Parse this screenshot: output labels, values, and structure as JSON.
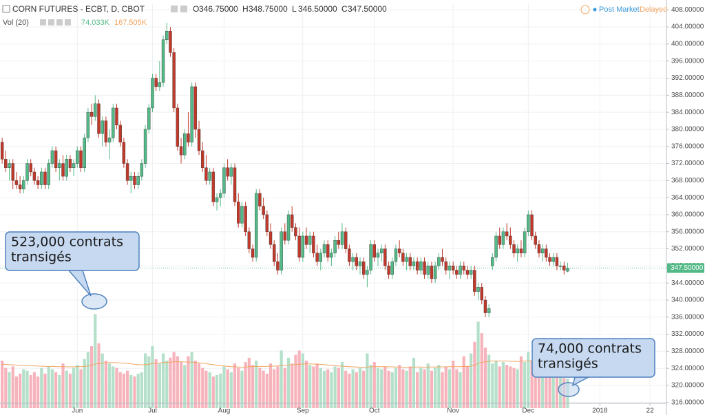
{
  "chart_data": {
    "type": "candlestick",
    "title": "CORN FUTURES - ECBT, D, CBOT",
    "ohlc": [
      {
        "label": "O",
        "value": "346.75000"
      },
      {
        "label": "H",
        "value": "348.75000"
      },
      {
        "label": "L",
        "value": "346.50000"
      },
      {
        "label": "C",
        "value": "347.50000"
      }
    ],
    "volume_title": "Vol (20)",
    "volume_label": "74.033K",
    "volume_ma_label": "167.505K",
    "status": [
      "Post Market",
      "Delayed"
    ],
    "last_price": {
      "value": 347.5,
      "label": "347.50000"
    },
    "annotations": [
      {
        "lines": [
          "523,000 contrats",
          "transigés"
        ]
      },
      {
        "lines": [
          "74,000 contrats",
          "transigés"
        ]
      }
    ],
    "up_color": "#53b987",
    "down_color": "#c0392b",
    "volume_up_color": "#b4e0ca",
    "volume_down_color": "#f7b3bb",
    "volume_ma_color": "#f0a35e",
    "grid": true,
    "xlim": [
      -0.6,
      185.6
    ],
    "xticks": [
      {
        "value": 21,
        "label": "Jun"
      },
      {
        "value": 42,
        "label": "Jul"
      },
      {
        "value": 62,
        "label": "Aug"
      },
      {
        "value": 84,
        "label": "Sep"
      },
      {
        "value": 104,
        "label": "Oct"
      },
      {
        "value": 126,
        "label": "Nov"
      },
      {
        "value": 147,
        "label": "Dec"
      },
      {
        "value": 167,
        "label": "2018"
      },
      {
        "value": 181,
        "label": "22"
      }
    ],
    "ylim": [
      315,
      409.5
    ],
    "yticks": [
      {
        "value": 316,
        "label": "316.00000"
      },
      {
        "value": 320,
        "label": "320.00000"
      },
      {
        "value": 324,
        "label": "324.00000"
      },
      {
        "value": 328,
        "label": "328.00000"
      },
      {
        "value": 332,
        "label": "332.00000"
      },
      {
        "value": 336,
        "label": "336.00000"
      },
      {
        "value": 340,
        "label": "340.00000"
      },
      {
        "value": 344,
        "label": "344.00000"
      },
      {
        "value": 348,
        "label": "348.00000"
      },
      {
        "value": 352,
        "label": "352.00000"
      },
      {
        "value": 356,
        "label": "356.00000"
      },
      {
        "value": 360,
        "label": "360.00000"
      },
      {
        "value": 364,
        "label": "364.00000"
      },
      {
        "value": 368,
        "label": "368.00000"
      },
      {
        "value": 372,
        "label": "372.00000"
      },
      {
        "value": 376,
        "label": "376.00000"
      },
      {
        "value": 380,
        "label": "380.00000"
      },
      {
        "value": 384,
        "label": "384.00000"
      },
      {
        "value": 388,
        "label": "388.00000"
      },
      {
        "value": 392,
        "label": "392.00000"
      },
      {
        "value": 396,
        "label": "396.00000"
      },
      {
        "value": 400,
        "label": "400.00000"
      },
      {
        "value": 404,
        "label": "404.00000"
      },
      {
        "value": 408,
        "label": "408.00000"
      }
    ],
    "candles": [
      [
        377,
        378,
        372,
        373
      ],
      [
        373,
        375,
        370,
        371
      ],
      [
        371,
        373,
        368,
        372
      ],
      [
        372,
        373,
        366,
        368
      ],
      [
        368,
        370,
        366,
        367
      ],
      [
        367,
        369,
        365,
        366
      ],
      [
        366,
        369,
        365,
        368
      ],
      [
        368,
        373,
        367,
        372
      ],
      [
        372,
        373,
        369,
        370
      ],
      [
        370,
        371,
        367,
        368
      ],
      [
        368,
        369,
        366,
        367
      ],
      [
        367,
        371,
        366,
        370
      ],
      [
        370,
        371,
        366,
        367
      ],
      [
        367,
        373,
        366,
        372
      ],
      [
        372,
        376,
        371,
        375
      ],
      [
        375,
        376,
        370,
        371
      ],
      [
        371,
        373,
        368,
        372
      ],
      [
        372,
        374,
        368,
        369
      ],
      [
        369,
        374,
        368,
        373
      ],
      [
        373,
        374,
        370,
        371
      ],
      [
        371,
        373,
        369,
        372
      ],
      [
        372,
        376,
        371,
        375
      ],
      [
        375,
        376,
        370,
        371
      ],
      [
        371,
        379,
        370,
        378
      ],
      [
        378,
        385,
        377,
        384
      ],
      [
        384,
        386,
        381,
        383
      ],
      [
        383,
        388,
        382,
        386
      ],
      [
        386,
        387,
        378,
        379
      ],
      [
        379,
        383,
        376,
        382
      ],
      [
        382,
        383,
        376,
        377
      ],
      [
        377,
        380,
        373,
        378
      ],
      [
        378,
        386,
        377,
        385
      ],
      [
        385,
        386,
        380,
        381
      ],
      [
        381,
        382,
        376,
        377
      ],
      [
        377,
        378,
        371,
        372
      ],
      [
        372,
        373,
        367,
        368
      ],
      [
        368,
        370,
        365,
        369
      ],
      [
        369,
        370,
        366,
        367
      ],
      [
        367,
        370,
        366,
        369
      ],
      [
        369,
        373,
        368,
        372
      ],
      [
        372,
        381,
        371,
        380
      ],
      [
        380,
        386,
        379,
        385
      ],
      [
        385,
        393,
        384,
        392
      ],
      [
        392,
        393,
        389,
        390
      ],
      [
        390,
        396,
        389,
        391
      ],
      [
        391,
        402,
        390,
        401
      ],
      [
        401,
        405,
        400,
        403
      ],
      [
        403,
        404,
        397,
        398
      ],
      [
        398,
        399,
        384,
        385
      ],
      [
        385,
        386,
        375,
        376
      ],
      [
        376,
        378,
        372,
        374
      ],
      [
        374,
        380,
        373,
        379
      ],
      [
        379,
        384,
        376,
        377
      ],
      [
        377,
        391,
        376,
        390
      ],
      [
        390,
        391,
        378,
        380
      ],
      [
        380,
        382,
        374,
        375
      ],
      [
        375,
        377,
        370,
        371
      ],
      [
        371,
        374,
        367,
        368
      ],
      [
        368,
        371,
        367,
        370
      ],
      [
        370,
        371,
        362,
        363
      ],
      [
        363,
        365,
        361,
        364
      ],
      [
        364,
        366,
        362,
        365
      ],
      [
        365,
        372,
        364,
        371
      ],
      [
        371,
        373,
        368,
        369
      ],
      [
        369,
        372,
        367,
        371
      ],
      [
        371,
        372,
        362,
        363
      ],
      [
        363,
        365,
        357,
        358
      ],
      [
        358,
        363,
        357,
        362
      ],
      [
        362,
        363,
        355,
        356
      ],
      [
        356,
        357,
        351,
        352
      ],
      [
        352,
        353,
        349,
        350
      ],
      [
        350,
        366,
        349,
        365
      ],
      [
        365,
        366,
        361,
        362
      ],
      [
        362,
        364,
        359,
        360
      ],
      [
        360,
        361,
        355,
        356
      ],
      [
        356,
        358,
        352,
        353
      ],
      [
        353,
        354,
        348,
        349
      ],
      [
        349,
        351,
        346,
        347
      ],
      [
        347,
        357,
        346,
        356
      ],
      [
        356,
        358,
        353,
        354
      ],
      [
        354,
        361,
        353,
        360
      ],
      [
        360,
        362,
        356,
        357
      ],
      [
        357,
        358,
        354,
        355
      ],
      [
        355,
        357,
        349,
        350
      ],
      [
        350,
        356,
        349,
        355
      ],
      [
        355,
        357,
        352,
        353
      ],
      [
        353,
        356,
        351,
        355
      ],
      [
        355,
        356,
        350,
        351
      ],
      [
        351,
        353,
        348,
        349
      ],
      [
        349,
        352,
        347,
        351
      ],
      [
        351,
        354,
        350,
        353
      ],
      [
        353,
        354,
        349,
        350
      ],
      [
        350,
        352,
        348,
        351
      ],
      [
        351,
        355,
        350,
        354
      ],
      [
        354,
        356,
        352,
        353
      ],
      [
        353,
        358,
        352,
        356
      ],
      [
        356,
        357,
        351,
        352
      ],
      [
        352,
        353,
        348,
        349
      ],
      [
        349,
        351,
        347,
        350
      ],
      [
        350,
        351,
        347,
        348
      ],
      [
        348,
        350,
        346,
        349
      ],
      [
        349,
        350,
        345,
        346
      ],
      [
        346,
        348,
        343,
        347
      ],
      [
        347,
        354,
        346,
        353
      ],
      [
        353,
        354,
        349,
        350
      ],
      [
        350,
        352,
        348,
        351
      ],
      [
        351,
        353,
        349,
        352
      ],
      [
        352,
        353,
        347,
        348
      ],
      [
        348,
        349,
        345,
        346
      ],
      [
        346,
        350,
        345,
        349
      ],
      [
        349,
        353,
        348,
        352
      ],
      [
        352,
        354,
        350,
        351
      ],
      [
        351,
        352,
        348,
        349
      ],
      [
        349,
        351,
        347,
        350
      ],
      [
        350,
        351,
        347,
        348
      ],
      [
        348,
        350,
        347,
        349
      ],
      [
        349,
        350,
        346,
        347
      ],
      [
        347,
        350,
        346,
        349
      ],
      [
        349,
        350,
        345,
        346
      ],
      [
        346,
        349,
        345,
        348
      ],
      [
        348,
        349,
        344,
        345
      ],
      [
        345,
        349,
        344,
        348
      ],
      [
        348,
        351,
        347,
        350
      ],
      [
        350,
        352,
        348,
        349
      ],
      [
        349,
        350,
        346,
        347
      ],
      [
        347,
        349,
        345,
        348
      ],
      [
        348,
        349,
        346,
        347
      ],
      [
        347,
        348,
        345,
        346
      ],
      [
        346,
        349,
        345,
        348
      ],
      [
        348,
        349,
        346,
        347
      ],
      [
        347,
        348,
        345,
        346
      ],
      [
        346,
        348,
        345,
        347
      ],
      [
        347,
        348,
        341,
        342
      ],
      [
        342,
        344,
        340,
        343
      ],
      [
        343,
        344,
        339,
        340
      ],
      [
        340,
        341,
        336,
        337
      ],
      [
        337,
        339,
        336,
        338
      ],
      [
        348,
        351,
        347,
        350
      ],
      [
        350,
        356,
        349,
        355
      ],
      [
        355,
        357,
        352,
        353
      ],
      [
        353,
        357,
        352,
        356
      ],
      [
        356,
        358,
        354,
        355
      ],
      [
        355,
        357,
        352,
        353
      ],
      [
        353,
        354,
        350,
        351
      ],
      [
        351,
        353,
        349,
        352
      ],
      [
        352,
        354,
        350,
        351
      ],
      [
        351,
        357,
        350,
        356
      ],
      [
        356,
        361,
        355,
        360
      ],
      [
        360,
        361,
        354,
        355
      ],
      [
        355,
        356,
        352,
        353
      ],
      [
        353,
        354,
        350,
        351
      ],
      [
        351,
        353,
        349,
        352
      ],
      [
        352,
        353,
        349,
        350
      ],
      [
        350,
        351,
        348,
        349
      ],
      [
        349,
        351,
        348,
        350
      ],
      [
        350,
        351,
        347,
        348
      ],
      [
        348,
        349,
        347,
        348
      ],
      [
        348,
        349,
        346,
        347
      ],
      [
        346.75,
        348.75,
        346.5,
        347.5
      ]
    ],
    "volumes": [
      200,
      150,
      120,
      160,
      90,
      110,
      140,
      130,
      100,
      120,
      90,
      150,
      110,
      160,
      140,
      120,
      100,
      180,
      130,
      110,
      150,
      170,
      140,
      210,
      260,
      300,
      523,
      320,
      250,
      200,
      180,
      160,
      150,
      120,
      110,
      130,
      100,
      90,
      110,
      120,
      250,
      230,
      300,
      210,
      180,
      250,
      200,
      220,
      260,
      230,
      190,
      170,
      230,
      260,
      200,
      180,
      150,
      130,
      120,
      90,
      100,
      110,
      160,
      140,
      120,
      180,
      150,
      130,
      190,
      220,
      170,
      200,
      150,
      130,
      110,
      180,
      140,
      160,
      270,
      150,
      220,
      180,
      240,
      270,
      250,
      200,
      170,
      160,
      180,
      150,
      130,
      140,
      120,
      160,
      150,
      190,
      130,
      110,
      140,
      120,
      150,
      130,
      250,
      170,
      190,
      150,
      140,
      160,
      130,
      120,
      150,
      170,
      140,
      130,
      160,
      220,
      120,
      150,
      140,
      180,
      130,
      150,
      170,
      120,
      160,
      140,
      200,
      140,
      120,
      230,
      160,
      250,
      330,
      470,
      390,
      290,
      240,
      180,
      200,
      160,
      190,
      170,
      160,
      150,
      140,
      230,
      190,
      260,
      200,
      170,
      150,
      130,
      120,
      110,
      140,
      100,
      90,
      80,
      74.033
    ],
    "volume_ma": [
      175,
      174,
      172,
      171,
      169,
      168,
      167,
      166,
      165,
      164,
      163,
      162,
      161,
      160,
      160,
      159,
      158,
      158,
      157,
      157,
      157,
      158,
      158,
      160,
      163,
      166,
      176,
      180,
      183,
      185,
      186,
      186,
      185,
      184,
      183,
      181,
      178,
      175,
      173,
      171,
      173,
      175,
      180,
      182,
      183,
      186,
      188,
      190,
      192,
      193,
      192,
      191,
      190,
      189,
      187,
      185,
      182,
      179,
      175,
      172,
      168,
      165,
      163,
      161,
      158,
      157,
      156,
      155,
      156,
      158,
      159,
      160,
      160,
      160,
      161,
      162,
      162,
      163,
      167,
      168,
      170,
      171,
      173,
      175,
      176,
      177,
      177,
      176,
      175,
      174,
      172,
      170,
      168,
      165,
      163,
      162,
      160,
      158,
      157,
      156,
      155,
      154,
      156,
      157,
      158,
      158,
      158,
      158,
      157,
      157,
      156,
      156,
      155,
      154,
      154,
      155,
      156,
      156,
      155,
      156,
      156,
      156,
      157,
      157,
      157,
      158,
      158,
      158,
      158,
      160,
      160,
      162,
      167,
      180,
      188,
      193,
      196,
      197,
      197,
      197,
      197,
      197,
      196,
      195,
      194,
      196,
      196,
      198,
      199,
      197,
      194,
      190,
      186,
      182,
      179,
      176,
      172,
      170,
      167.505
    ]
  }
}
